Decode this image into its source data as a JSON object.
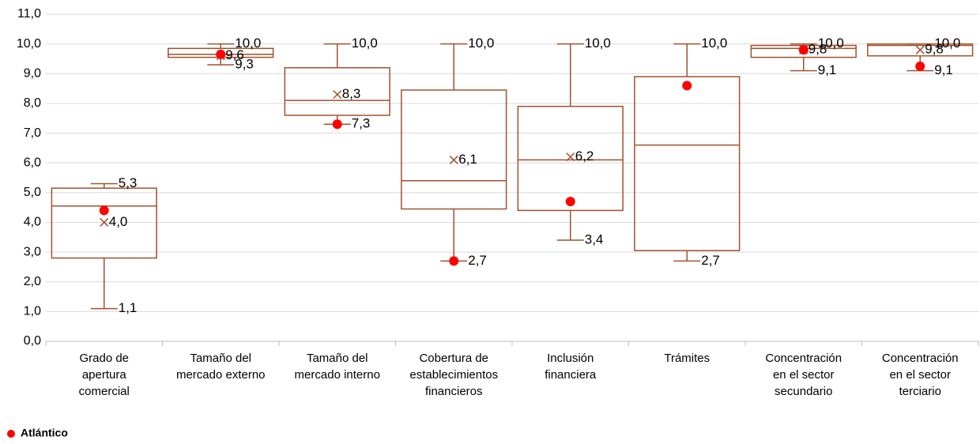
{
  "chart_data": {
    "type": "box",
    "categories": [
      [
        "Grado de",
        "apertura",
        "comercial"
      ],
      [
        "Tamaño del",
        "mercado externo"
      ],
      [
        "Tamaño del",
        "mercado interno"
      ],
      [
        "Cobertura de",
        "establecimientos",
        "financieros"
      ],
      [
        "Inclusión",
        "financiera"
      ],
      [
        "Trámites"
      ],
      [
        "Concentración",
        "en el sector",
        "secundario"
      ],
      [
        "Concentración",
        "en el sector",
        "terciario"
      ]
    ],
    "min": [
      1.1,
      9.3,
      7.3,
      2.7,
      3.4,
      2.7,
      9.1,
      9.1
    ],
    "min_value_labels": [
      "1,1",
      "9,3",
      "7,3",
      "2,7",
      "3,4",
      "2,7",
      "9,1",
      "9,1"
    ],
    "q1": [
      2.8,
      9.55,
      7.6,
      4.45,
      4.4,
      3.05,
      9.55,
      9.6
    ],
    "median": [
      4.55,
      9.65,
      8.1,
      5.4,
      6.1,
      6.6,
      9.85,
      9.95
    ],
    "q3": [
      5.15,
      9.85,
      9.2,
      8.45,
      7.9,
      8.9,
      9.95,
      10.0
    ],
    "max": [
      5.3,
      10.0,
      10.0,
      10.0,
      10.0,
      10.0,
      10.0,
      10.0
    ],
    "max_value_labels": [
      "5,3",
      "10,0",
      "10,0",
      "10,0",
      "10,0",
      "10,0",
      "10,0",
      "10,0"
    ],
    "mean": [
      4.0,
      9.6,
      8.3,
      6.1,
      6.2,
      null,
      9.8,
      9.8
    ],
    "mean_value_labels": [
      "4,0",
      "9,6",
      "8,3",
      "6,1",
      "6,2",
      null,
      "9,8",
      "9,8"
    ],
    "box_color": "#a0522d",
    "series": [
      {
        "name": "Atlántico",
        "color": "#ff0000",
        "values": [
          4.4,
          9.65,
          7.3,
          2.7,
          4.7,
          8.6,
          9.8,
          9.25
        ]
      }
    ],
    "ylim": [
      0,
      11
    ],
    "yticks": [
      {
        "value": 0,
        "label": "0,0"
      },
      {
        "value": 1,
        "label": "1,0"
      },
      {
        "value": 2,
        "label": "2,0"
      },
      {
        "value": 3,
        "label": "3,0"
      },
      {
        "value": 4,
        "label": "4,0"
      },
      {
        "value": 5,
        "label": "5,0"
      },
      {
        "value": 6,
        "label": "6,0"
      },
      {
        "value": 7,
        "label": "7,0"
      },
      {
        "value": 8,
        "label": "8,0"
      },
      {
        "value": 9,
        "label": "9,0"
      },
      {
        "value": 10,
        "label": "10,0"
      },
      {
        "value": 11,
        "label": "11,0"
      }
    ],
    "grid": true,
    "legend": "bottom-left"
  }
}
